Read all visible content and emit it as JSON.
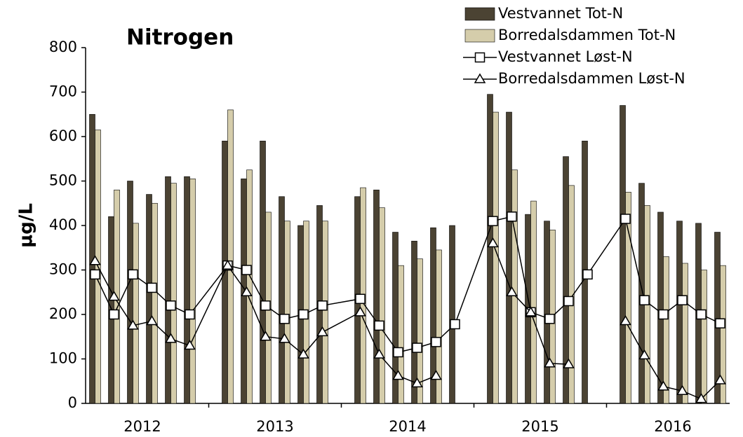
{
  "chart_data": {
    "type": "bar",
    "title": "Nitrogen",
    "y_label": "µg/L",
    "groups": [
      "2012",
      "2013",
      "2014",
      "2015",
      "2016"
    ],
    "categories": [
      null,
      null,
      null,
      null,
      null,
      null,
      null,
      null,
      null,
      null,
      null,
      null,
      null,
      null,
      null,
      null,
      null,
      null,
      null,
      null,
      null,
      null,
      null,
      null,
      null,
      null,
      null,
      null,
      null,
      null
    ],
    "ylim": [
      0,
      800
    ],
    "yticks": [
      0,
      100,
      200,
      300,
      400,
      500,
      600,
      700,
      800
    ],
    "series": [
      {
        "name": "Vestvannet Tot-N",
        "type": "bar",
        "color": "#4b4333",
        "values": [
          650,
          420,
          500,
          470,
          510,
          510,
          590,
          505,
          590,
          465,
          400,
          445,
          465,
          480,
          385,
          365,
          395,
          400,
          695,
          655,
          425,
          410,
          555,
          590,
          670,
          495,
          430,
          410,
          405,
          385
        ]
      },
      {
        "name": "Borredalsdammen Tot-N",
        "type": "bar",
        "color": "#d5cdab",
        "values": [
          615,
          480,
          405,
          450,
          495,
          505,
          660,
          525,
          430,
          410,
          410,
          410,
          485,
          440,
          310,
          325,
          345,
          null,
          655,
          525,
          455,
          390,
          490,
          null,
          475,
          445,
          330,
          315,
          300,
          310
        ]
      },
      {
        "name": "Vestvannet Løst-N",
        "type": "line",
        "marker": "square",
        "color": "#000000",
        "values": [
          290,
          200,
          290,
          260,
          220,
          200,
          310,
          300,
          220,
          190,
          200,
          220,
          235,
          175,
          115,
          125,
          138,
          178,
          410,
          420,
          205,
          190,
          230,
          290,
          415,
          232,
          200,
          232,
          200,
          180
        ]
      },
      {
        "name": "Borredalsdammen Løst-N",
        "type": "line",
        "marker": "triangle",
        "color": "#000000",
        "values": [
          320,
          240,
          175,
          185,
          145,
          130,
          310,
          250,
          150,
          145,
          110,
          160,
          205,
          110,
          62,
          45,
          62,
          null,
          360,
          250,
          205,
          90,
          88,
          null,
          185,
          108,
          38,
          28,
          10,
          52
        ]
      }
    ]
  }
}
